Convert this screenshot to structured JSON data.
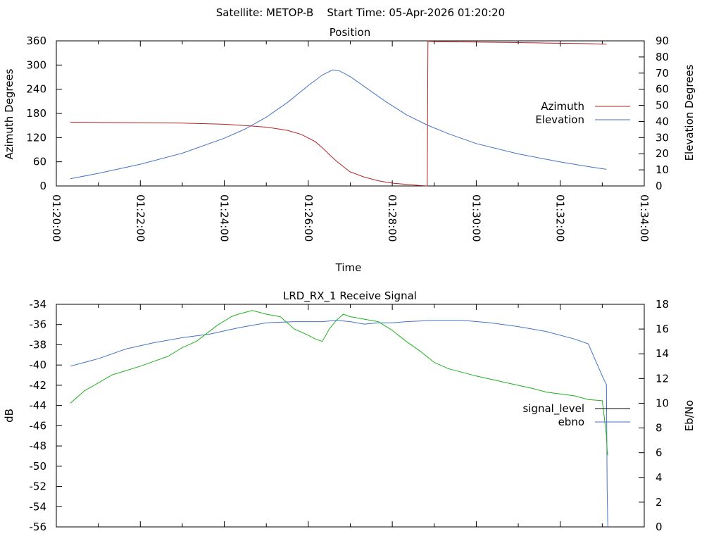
{
  "figure": {
    "header": "Satellite: METOP-B    Start Time: 05-Apr-2026 01:20:20"
  },
  "chart_data": [
    {
      "type": "line",
      "title": "Position",
      "xlabel": "Time",
      "ylabel": "Azimuth Degrees",
      "y2label": "Elevation Degrees",
      "xlim": [
        0,
        840
      ],
      "ylim": [
        0,
        360
      ],
      "y2lim": [
        0,
        90
      ],
      "xtick_labels": [
        "01:20:00",
        "01:22:00",
        "01:24:00",
        "01:26:00",
        "01:28:00",
        "01:30:00",
        "01:32:00",
        "01:34:00"
      ],
      "xticks": [
        0,
        120,
        240,
        360,
        480,
        600,
        720,
        840
      ],
      "yticks": [
        0,
        60,
        120,
        180,
        240,
        300,
        360
      ],
      "y2ticks": [
        0,
        10,
        20,
        30,
        40,
        50,
        60,
        70,
        80,
        90
      ],
      "legend_position": "right",
      "series": [
        {
          "name": "Azimuth",
          "axis": "y",
          "color": "#b22222",
          "x": [
            20,
            60,
            120,
            180,
            240,
            270,
            300,
            330,
            350,
            370,
            380,
            390,
            400,
            410,
            420,
            440,
            460,
            480,
            500,
            520,
            530,
            531,
            532,
            540,
            560,
            600,
            640,
            700,
            760,
            786
          ],
          "values": [
            158,
            157.5,
            157,
            156,
            153,
            150,
            146,
            138,
            128,
            110,
            95,
            78,
            62,
            48,
            35,
            22,
            13,
            7,
            4,
            1,
            0,
            360,
            359,
            358.5,
            358,
            357,
            356,
            354.5,
            353,
            352
          ]
        },
        {
          "name": "Elevation",
          "axis": "y2",
          "color": "#4472c4",
          "x": [
            20,
            60,
            120,
            180,
            240,
            270,
            300,
            330,
            360,
            380,
            395,
            405,
            420,
            440,
            470,
            500,
            530,
            560,
            600,
            660,
            720,
            760,
            786
          ],
          "values": [
            4.5,
            7.8,
            13.5,
            20.3,
            29.6,
            35.4,
            42.7,
            51.7,
            62.3,
            68.8,
            72,
            71.3,
            67.8,
            61.7,
            52.5,
            44.2,
            37.8,
            32.4,
            26.3,
            19.9,
            14.9,
            12,
            10.3
          ]
        }
      ]
    },
    {
      "type": "line",
      "title": "LRD_RX_1 Receive Signal",
      "xlabel": "",
      "ylabel": "dB",
      "y2label": "Eb/No",
      "xlim": [
        0,
        840
      ],
      "ylim": [
        -56,
        -34
      ],
      "y2lim": [
        0,
        18
      ],
      "yticks": [
        -56,
        -54,
        -52,
        -50,
        -48,
        -46,
        -44,
        -42,
        -40,
        -38,
        -36,
        -34
      ],
      "y2ticks": [
        0,
        2,
        4,
        6,
        8,
        10,
        12,
        14,
        16,
        18
      ],
      "legend_position": "right",
      "series": [
        {
          "name": "signal_level",
          "axis": "y",
          "color": "#000000",
          "x": [],
          "values": []
        },
        {
          "name": "ebno",
          "axis": "y2",
          "color": "#4472c4",
          "x": [
            20,
            60,
            100,
            140,
            180,
            220,
            260,
            300,
            340,
            380,
            400,
            420,
            440,
            460,
            480,
            500,
            540,
            580,
            620,
            660,
            700,
            740,
            760,
            780,
            786,
            787,
            788
          ],
          "values": [
            13,
            13.6,
            14.4,
            14.9,
            15.3,
            15.6,
            16.1,
            16.5,
            16.6,
            16.6,
            16.7,
            16.6,
            16.4,
            16.5,
            16.5,
            16.6,
            16.7,
            16.7,
            16.5,
            16.2,
            15.8,
            15.2,
            14.8,
            12.2,
            11.5,
            3,
            0
          ]
        },
        {
          "name": "",
          "axis": "y2",
          "color": "#20b020",
          "x": [
            20,
            40,
            80,
            120,
            160,
            180,
            200,
            230,
            250,
            260,
            280,
            300,
            320,
            340,
            360,
            370,
            380,
            390,
            400,
            410,
            420,
            440,
            460,
            480,
            500,
            520,
            540,
            560,
            600,
            640,
            680,
            700,
            740,
            760,
            780,
            786,
            787,
            788
          ],
          "values": [
            10,
            11,
            12.3,
            13,
            13.8,
            14.5,
            15,
            16.3,
            17,
            17.2,
            17.5,
            17.2,
            17,
            16,
            15.5,
            15.2,
            15,
            16,
            16.7,
            17.2,
            17,
            16.8,
            16.6,
            15.9,
            15,
            14.2,
            13.3,
            12.8,
            12.2,
            11.7,
            11.2,
            10.9,
            10.6,
            10.3,
            10.2,
            7.4,
            6.2,
            5.8
          ]
        }
      ]
    }
  ]
}
